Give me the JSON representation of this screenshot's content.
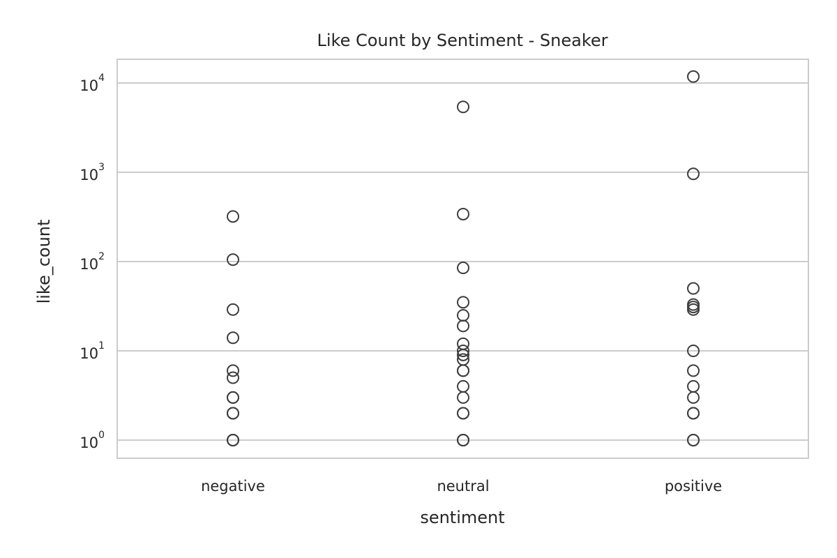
{
  "chart_data": {
    "type": "scatter",
    "title": "Like Count by Sentiment - Sneaker",
    "xlabel": "sentiment",
    "ylabel": "like_count",
    "yscale": "log",
    "ylim": [
      0.82,
      16000
    ],
    "grid": "horizontal",
    "categories": [
      "negative",
      "neutral",
      "positive"
    ],
    "y_ticks": [
      {
        "base": "10",
        "exp": "0",
        "value": 1
      },
      {
        "base": "10",
        "exp": "1",
        "value": 10
      },
      {
        "base": "10",
        "exp": "2",
        "value": 100
      },
      {
        "base": "10",
        "exp": "3",
        "value": 1000
      },
      {
        "base": "10",
        "exp": "4",
        "value": 10000
      }
    ],
    "series": [
      {
        "category": "negative",
        "values": [
          1,
          1,
          1,
          2,
          2,
          3,
          3,
          5,
          6,
          14,
          29,
          105,
          320
        ]
      },
      {
        "category": "neutral",
        "values": [
          1,
          1,
          1,
          2,
          2,
          3,
          4,
          6,
          6,
          8,
          9,
          10,
          12,
          19,
          25,
          35,
          85,
          340,
          5400
        ]
      },
      {
        "category": "positive",
        "values": [
          1,
          1,
          2,
          2,
          3,
          4,
          6,
          10,
          29,
          31,
          33,
          50,
          960,
          11800
        ]
      }
    ],
    "colors": {
      "marker_edge": "#3d3d3d",
      "grid": "#cccccc",
      "text": "#262626"
    }
  }
}
